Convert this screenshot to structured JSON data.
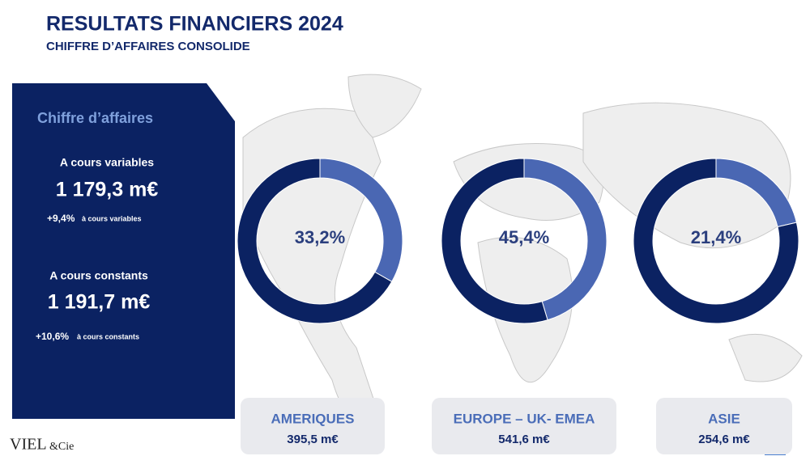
{
  "header": {
    "title": "RESULTATS FINANCIERS 2024",
    "subtitle": "CHIFFRE D’AFFAIRES CONSOLIDE"
  },
  "panel": {
    "title": "Chiffre d’affaires",
    "sections": [
      {
        "label": "A cours variables",
        "amount": "1 179,3 m€",
        "growth": "+9,4%",
        "growth_note": "à cours variables"
      },
      {
        "label": "A cours constants",
        "amount": "1 191,7 m€",
        "growth": "+10,6%",
        "growth_note": "à cours constants"
      }
    ]
  },
  "chart_data": [
    {
      "type": "pie",
      "title": "AMERIQUES",
      "total": "395,5 m€",
      "values": [
        33.2,
        66.8
      ],
      "value_labels": [
        "33,2%",
        null
      ],
      "colors": [
        "#4a67b3",
        "#0b2262"
      ]
    },
    {
      "type": "pie",
      "title": "EUROPE – UK- EMEA",
      "total": "541,6 m€",
      "values": [
        45.4,
        54.6
      ],
      "value_labels": [
        "45,4%",
        null
      ],
      "colors": [
        "#4a67b3",
        "#0b2262"
      ]
    },
    {
      "type": "pie",
      "title": "ASIE",
      "total": "254,6 m€",
      "values": [
        21.4,
        78.6
      ],
      "value_labels": [
        "21,4%",
        null
      ],
      "colors": [
        "#4a67b3",
        "#0b2262"
      ]
    }
  ],
  "logo": {
    "name": "VIEL",
    "suffix": "&Cie"
  }
}
